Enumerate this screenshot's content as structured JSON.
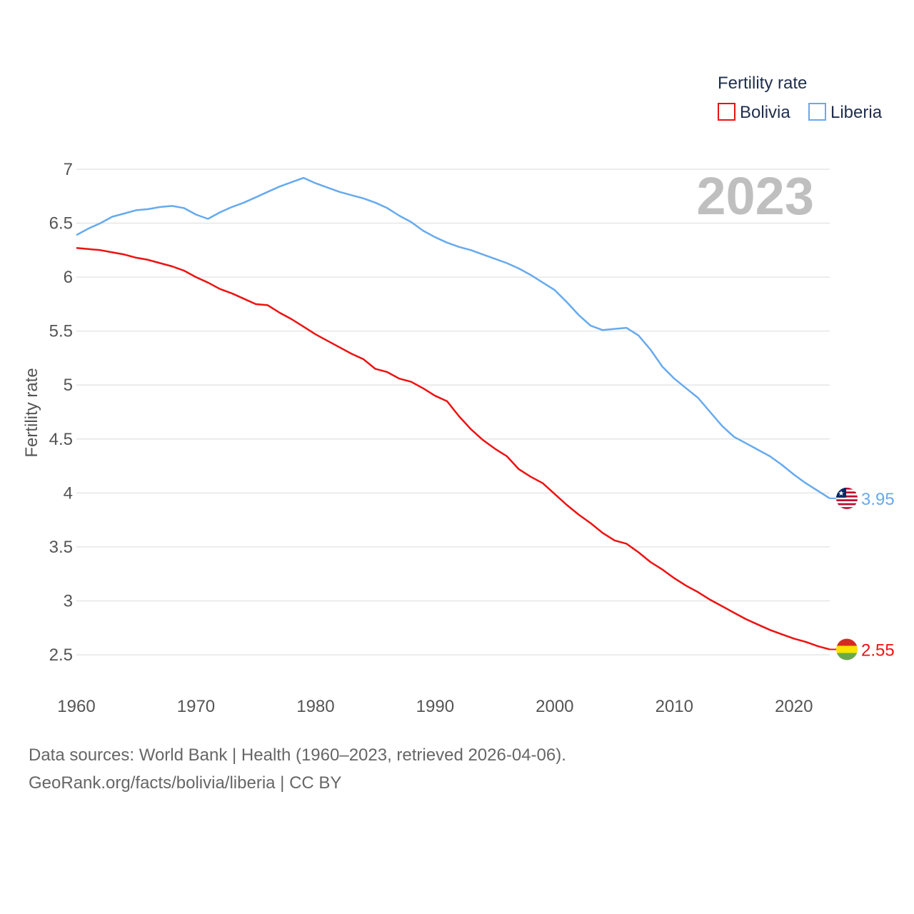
{
  "chart_data": {
    "type": "line",
    "title": "",
    "year_label": "2023",
    "legend_title": "Fertility rate",
    "legend_placement": "top-right",
    "xlabel": "",
    "ylabel": "Fertility rate",
    "xlim": [
      1960,
      2023
    ],
    "ylim": [
      2.5,
      7
    ],
    "x_ticks": [
      1960,
      1970,
      1980,
      1990,
      2000,
      2010,
      2020
    ],
    "y_ticks": [
      2.5,
      3,
      3.5,
      4,
      4.5,
      5,
      5.5,
      6,
      6.5,
      7
    ],
    "x": [
      1960,
      1961,
      1962,
      1963,
      1964,
      1965,
      1966,
      1967,
      1968,
      1969,
      1970,
      1971,
      1972,
      1973,
      1974,
      1975,
      1976,
      1977,
      1978,
      1979,
      1980,
      1981,
      1982,
      1983,
      1984,
      1985,
      1986,
      1987,
      1988,
      1989,
      1990,
      1991,
      1992,
      1993,
      1994,
      1995,
      1996,
      1997,
      1998,
      1999,
      2000,
      2001,
      2002,
      2003,
      2004,
      2005,
      2006,
      2007,
      2008,
      2009,
      2010,
      2011,
      2012,
      2013,
      2014,
      2015,
      2016,
      2017,
      2018,
      2019,
      2020,
      2021,
      2022,
      2023
    ],
    "series": [
      {
        "name": "Bolivia",
        "color": "#ee1111",
        "end_label": "2.55",
        "flag": "bolivia-flag",
        "values": [
          6.27,
          6.26,
          6.25,
          6.23,
          6.21,
          6.18,
          6.16,
          6.13,
          6.1,
          6.06,
          6.0,
          5.95,
          5.89,
          5.85,
          5.8,
          5.75,
          5.74,
          5.67,
          5.61,
          5.54,
          5.47,
          5.41,
          5.35,
          5.29,
          5.24,
          5.15,
          5.12,
          5.06,
          5.03,
          4.97,
          4.9,
          4.85,
          4.71,
          4.59,
          4.49,
          4.41,
          4.34,
          4.22,
          4.15,
          4.09,
          3.99,
          3.89,
          3.8,
          3.72,
          3.63,
          3.56,
          3.53,
          3.45,
          3.36,
          3.29,
          3.21,
          3.14,
          3.08,
          3.01,
          2.95,
          2.89,
          2.83,
          2.78,
          2.73,
          2.69,
          2.65,
          2.62,
          2.58,
          2.55
        ]
      },
      {
        "name": "Liberia",
        "color": "#66aaee",
        "end_label": "3.95",
        "flag": "liberia-flag",
        "values": [
          6.39,
          6.45,
          6.5,
          6.56,
          6.59,
          6.62,
          6.63,
          6.65,
          6.66,
          6.64,
          6.58,
          6.54,
          6.6,
          6.65,
          6.69,
          6.74,
          6.79,
          6.84,
          6.88,
          6.92,
          6.87,
          6.83,
          6.79,
          6.76,
          6.73,
          6.69,
          6.64,
          6.57,
          6.51,
          6.43,
          6.37,
          6.32,
          6.28,
          6.25,
          6.21,
          6.17,
          6.13,
          6.08,
          6.02,
          5.95,
          5.88,
          5.77,
          5.65,
          5.55,
          5.51,
          5.52,
          5.53,
          5.46,
          5.33,
          5.17,
          5.06,
          4.97,
          4.88,
          4.75,
          4.62,
          4.52,
          4.46,
          4.4,
          4.34,
          4.26,
          4.17,
          4.09,
          4.02,
          3.95
        ]
      }
    ]
  },
  "footer": {
    "line1": "Data sources: World Bank | Health (1960–2023, retrieved 2026-04-06).",
    "line2": "GeoRank.org/facts/bolivia/liberia | CC BY"
  }
}
